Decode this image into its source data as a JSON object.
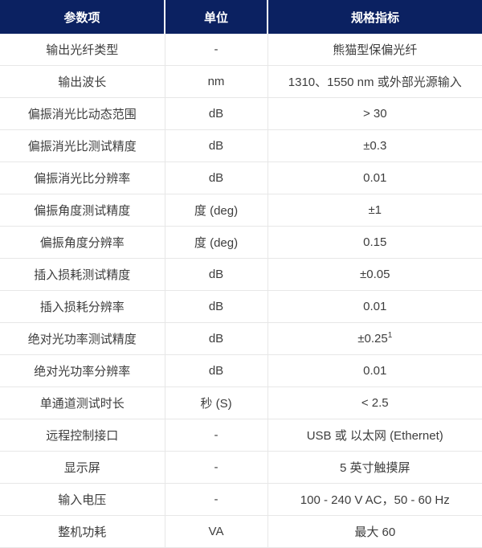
{
  "table": {
    "headers": [
      "参数项",
      "单位",
      "规格指标"
    ],
    "rows": [
      {
        "param": "输出光纤类型",
        "unit": "-",
        "spec": "熊猫型保偏光纤"
      },
      {
        "param": "输出波长",
        "unit": "nm",
        "spec": "1310、1550 nm 或外部光源输入"
      },
      {
        "param": "偏振消光比动态范围",
        "unit": "dB",
        "spec": "> 30"
      },
      {
        "param": "偏振消光比测试精度",
        "unit": "dB",
        "spec": "±0.3"
      },
      {
        "param": "偏振消光比分辨率",
        "unit": "dB",
        "spec": "0.01"
      },
      {
        "param": "偏振角度测试精度",
        "unit": "度 (deg)",
        "spec": "±1"
      },
      {
        "param": "偏振角度分辨率",
        "unit": "度 (deg)",
        "spec": "0.15"
      },
      {
        "param": "插入损耗测试精度",
        "unit": "dB",
        "spec": "±0.05"
      },
      {
        "param": "插入损耗分辨率",
        "unit": "dB",
        "spec": "0.01"
      },
      {
        "param": "绝对光功率测试精度",
        "unit": "dB",
        "spec": "±0.25",
        "spec_sup": "1"
      },
      {
        "param": "绝对光功率分辨率",
        "unit": "dB",
        "spec": "0.01"
      },
      {
        "param": "单通道测试时长",
        "unit": "秒 (S)",
        "spec": "< 2.5"
      },
      {
        "param": "远程控制接口",
        "unit": "-",
        "spec": "USB 或 以太网 (Ethernet)"
      },
      {
        "param": "显示屏",
        "unit": "-",
        "spec": "5 英寸触摸屏"
      },
      {
        "param": "输入电压",
        "unit": "-",
        "spec": "100 - 240 V AC，50 - 60 Hz"
      },
      {
        "param": "整机功耗",
        "unit": "VA",
        "spec": "最大 60"
      }
    ],
    "colors": {
      "header_bg": "#0b2161",
      "header_text": "#ffffff",
      "body_text": "#3d3d3d",
      "grid_line": "#e7e7e7"
    }
  }
}
